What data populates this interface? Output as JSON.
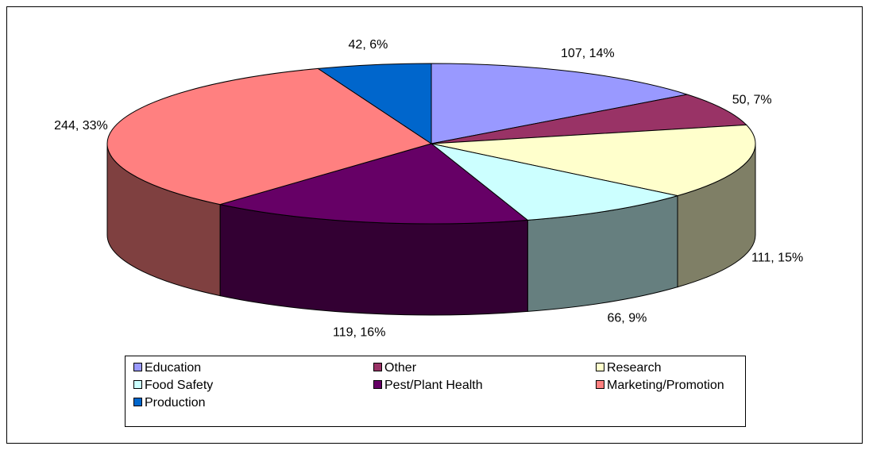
{
  "chart_data": {
    "type": "pie3d",
    "categories": [
      "Education",
      "Other",
      "Research",
      "Food Safety",
      "Pest/Plant Health",
      "Marketing/Promotion",
      "Production"
    ],
    "values": [
      107,
      50,
      111,
      66,
      119,
      244,
      42
    ],
    "value_labels": [
      "107, 14%",
      "50, 7%",
      "111, 15%",
      "66, 9%",
      "119, 16%",
      "244, 33%",
      "42, 6%"
    ],
    "colors": [
      "#9999ff",
      "#993366",
      "#ffffcc",
      "#ccffff",
      "#660066",
      "#ff8080",
      "#0066cc"
    ],
    "legend": "bottom"
  }
}
